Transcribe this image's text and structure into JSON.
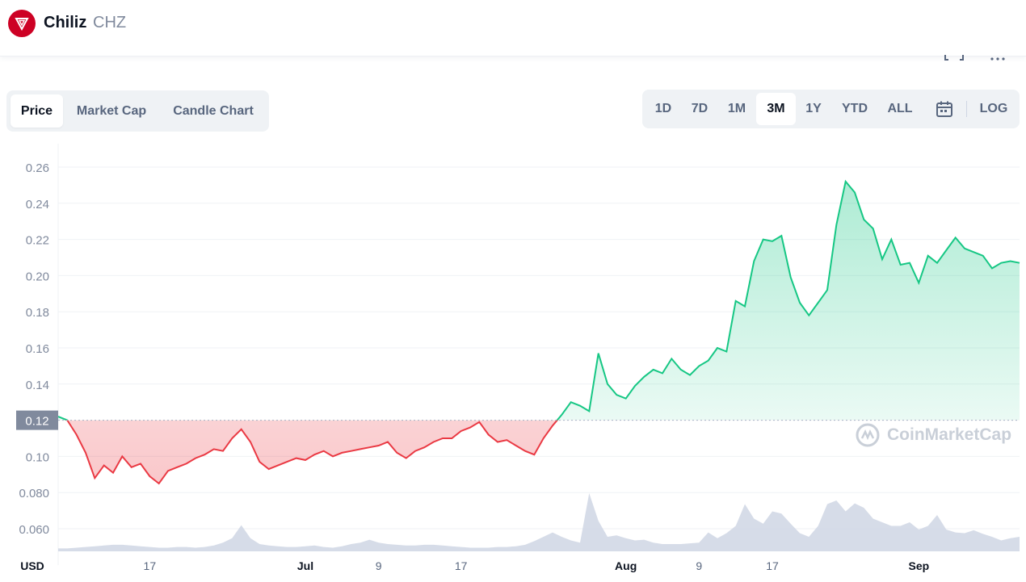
{
  "header": {
    "coin_name": "Chiliz",
    "coin_symbol": "CHZ",
    "logo_color": "#cd0124"
  },
  "chart_tabs": [
    "Price",
    "Market Cap",
    "Candle Chart"
  ],
  "active_chart_tab": "Price",
  "range_buttons": [
    "1D",
    "7D",
    "1M",
    "3M",
    "1Y",
    "YTD",
    "ALL"
  ],
  "active_range": "3M",
  "log_label": "LOG",
  "watermark": "CoinMarketCap",
  "colors": {
    "up": "#16c784",
    "down": "#ea3943",
    "volume": "#cfd6e4",
    "grid": "#eff2f5",
    "axis_text": "#58667e"
  },
  "chart_data": {
    "type": "line",
    "currency_label": "USD",
    "reference_price": 0.12,
    "reference_label": "0.12",
    "ylim": [
      0.052,
      0.272
    ],
    "yticks": [
      {
        "value": 0.26,
        "label": "0.26"
      },
      {
        "value": 0.24,
        "label": "0.24"
      },
      {
        "value": 0.22,
        "label": "0.22"
      },
      {
        "value": 0.2,
        "label": "0.20"
      },
      {
        "value": 0.18,
        "label": "0.18"
      },
      {
        "value": 0.16,
        "label": "0.16"
      },
      {
        "value": 0.14,
        "label": "0.14"
      },
      {
        "value": 0.1,
        "label": "0.10"
      },
      {
        "value": 0.08,
        "label": "0.080"
      },
      {
        "value": 0.06,
        "label": "0.060"
      }
    ],
    "xlim": [
      0,
      105
    ],
    "xticks": [
      {
        "day": 10,
        "label": "17"
      },
      {
        "day": 27,
        "label": "Jul"
      },
      {
        "day": 35,
        "label": "9"
      },
      {
        "day": 44,
        "label": "17"
      },
      {
        "day": 62,
        "label": "Aug"
      },
      {
        "day": 70,
        "label": "9"
      },
      {
        "day": 78,
        "label": "17"
      },
      {
        "day": 94,
        "label": "Sep"
      }
    ],
    "x_days": [
      0,
      1,
      2,
      3,
      4,
      5,
      6,
      7,
      8,
      9,
      10,
      11,
      12,
      13,
      14,
      15,
      16,
      17,
      18,
      19,
      20,
      21,
      22,
      23,
      24,
      25,
      26,
      27,
      28,
      29,
      30,
      31,
      32,
      33,
      34,
      35,
      36,
      37,
      38,
      39,
      40,
      41,
      42,
      43,
      44,
      45,
      46,
      47,
      48,
      49,
      50,
      51,
      52,
      53,
      54,
      55,
      56,
      57,
      58,
      59,
      60,
      61,
      62,
      63,
      64,
      65,
      66,
      67,
      68,
      69,
      70,
      71,
      72,
      73,
      74,
      75,
      76,
      77,
      78,
      79,
      80,
      81,
      82,
      83,
      84,
      85,
      86,
      87,
      88,
      89,
      90,
      91,
      92,
      93,
      94,
      95,
      96,
      97,
      98,
      99,
      100,
      101,
      102,
      103,
      104,
      105
    ],
    "price": [
      0.122,
      0.12,
      0.112,
      0.102,
      0.088,
      0.095,
      0.091,
      0.1,
      0.094,
      0.096,
      0.089,
      0.085,
      0.092,
      0.094,
      0.096,
      0.099,
      0.101,
      0.104,
      0.103,
      0.11,
      0.115,
      0.108,
      0.097,
      0.093,
      0.095,
      0.097,
      0.099,
      0.098,
      0.101,
      0.103,
      0.1,
      0.102,
      0.103,
      0.104,
      0.105,
      0.106,
      0.108,
      0.102,
      0.099,
      0.103,
      0.105,
      0.108,
      0.11,
      0.11,
      0.114,
      0.116,
      0.119,
      0.112,
      0.108,
      0.109,
      0.106,
      0.103,
      0.101,
      0.11,
      0.117,
      0.123,
      0.13,
      0.128,
      0.125,
      0.157,
      0.14,
      0.134,
      0.132,
      0.139,
      0.144,
      0.148,
      0.146,
      0.154,
      0.148,
      0.145,
      0.15,
      0.153,
      0.16,
      0.158,
      0.186,
      0.183,
      0.208,
      0.22,
      0.219,
      0.222,
      0.199,
      0.185,
      0.178,
      0.185,
      0.192,
      0.228,
      0.252,
      0.246,
      0.231,
      0.226,
      0.209,
      0.22,
      0.206,
      0.207,
      0.196,
      0.211,
      0.207,
      0.214,
      0.221,
      0.215,
      0.213,
      0.211,
      0.204,
      0.207,
      0.208,
      0.207
    ],
    "volume": [
      0.4,
      0.4,
      0.5,
      0.6,
      0.7,
      0.8,
      0.9,
      0.9,
      0.8,
      0.7,
      0.6,
      0.5,
      0.5,
      0.6,
      0.6,
      0.5,
      0.6,
      0.8,
      1.2,
      1.8,
      3.6,
      1.8,
      1.0,
      0.8,
      0.7,
      0.6,
      0.6,
      0.7,
      0.8,
      0.6,
      0.5,
      0.7,
      1.0,
      1.2,
      1.6,
      1.2,
      1.0,
      0.9,
      0.8,
      0.8,
      0.9,
      0.9,
      0.8,
      0.7,
      0.6,
      0.5,
      0.5,
      0.5,
      0.6,
      0.6,
      0.7,
      0.9,
      1.4,
      2.0,
      2.6,
      2.0,
      1.5,
      1.2,
      8.0,
      4.2,
      2.0,
      2.2,
      1.8,
      1.5,
      1.6,
      1.2,
      1.0,
      1.0,
      1.0,
      1.1,
      1.2,
      2.6,
      1.8,
      2.5,
      3.5,
      6.5,
      4.5,
      3.8,
      5.5,
      5.2,
      3.8,
      2.5,
      2.0,
      3.5,
      6.5,
      7.0,
      5.5,
      6.6,
      6.0,
      4.5,
      4.0,
      3.5,
      3.5,
      4.0,
      3.0,
      3.5,
      5.0,
      3.0,
      2.6,
      2.5,
      2.9,
      2.4,
      2.0,
      1.5,
      1.8,
      2.0
    ],
    "grid": true,
    "legend": "none"
  }
}
